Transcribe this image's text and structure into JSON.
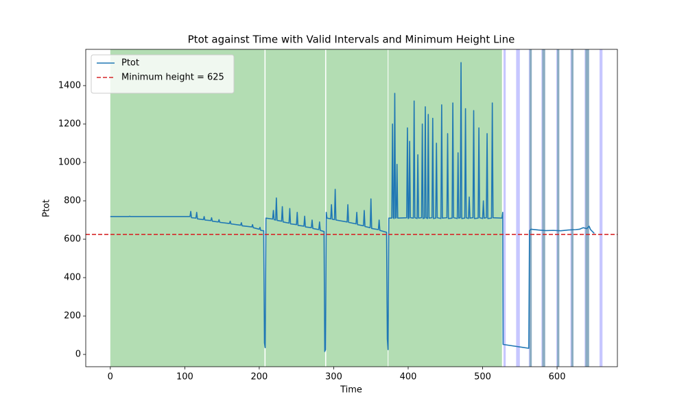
{
  "chart_data": {
    "type": "line",
    "title": "Ptot against Time with Valid Intervals and Minimum Height Line",
    "x_label": "Time",
    "y_label": "Ptot",
    "xlim": [
      -33,
      681
    ],
    "ylim": [
      -64,
      1589
    ],
    "xticks": [
      0,
      100,
      200,
      300,
      400,
      500,
      600
    ],
    "yticks": [
      0,
      200,
      400,
      600,
      800,
      1000,
      1200,
      1400
    ],
    "legend": "upper left",
    "spans": [
      {
        "color": "#2ca02c",
        "alpha": 0.36,
        "intervals": [
          [
            0,
            207
          ],
          [
            208.5,
            288.5
          ],
          [
            290,
            372.5
          ],
          [
            373.5,
            526
          ],
          [
            563,
            566
          ],
          [
            580,
            584
          ],
          [
            600,
            603
          ],
          [
            619,
            622
          ],
          [
            638,
            643
          ]
        ]
      },
      {
        "color": "#0000ff",
        "alpha": 0.22,
        "intervals": [
          [
            528,
            531
          ],
          [
            545,
            550
          ],
          [
            562,
            566
          ],
          [
            579,
            584
          ],
          [
            599,
            603
          ],
          [
            618,
            622
          ],
          [
            637,
            643
          ],
          [
            657,
            661
          ]
        ]
      }
    ],
    "hline": {
      "value": 625,
      "label": "Minimum height = 625",
      "color": "#d62728"
    },
    "series": [
      {
        "name": "Ptot",
        "color": "#1f77b4",
        "x": [
          0,
          25,
          26,
          27,
          107,
          108,
          109,
          115,
          116,
          117,
          125,
          126,
          127,
          135,
          136,
          137,
          145,
          146,
          147,
          160,
          161,
          162,
          175,
          176,
          177,
          190,
          191,
          192,
          200,
          201,
          202,
          206,
          207,
          208,
          209,
          218,
          219,
          220,
          222,
          223,
          224,
          230,
          231,
          232,
          240,
          241,
          242,
          250,
          251,
          252,
          260,
          261,
          262,
          270,
          271,
          272,
          280,
          281,
          282,
          287,
          288,
          289,
          290,
          291,
          296,
          297,
          298,
          301,
          302,
          303,
          318,
          319,
          320,
          330,
          331,
          332,
          340,
          341,
          342,
          349,
          350,
          351,
          360,
          361,
          362,
          371,
          372,
          373,
          374,
          378,
          379,
          380,
          381,
          382,
          383,
          384,
          385,
          386,
          398,
          399,
          400,
          401,
          402,
          403,
          407,
          408,
          409,
          412,
          413,
          414,
          418,
          419,
          420,
          422,
          423,
          424,
          426,
          427,
          428,
          432,
          433,
          434,
          437,
          438,
          439,
          444,
          445,
          446,
          452,
          453,
          454,
          459,
          460,
          461,
          466,
          467,
          468,
          470,
          471,
          472,
          476,
          477,
          478,
          481,
          482,
          483,
          487,
          488,
          489,
          494,
          495,
          496,
          500,
          501,
          502,
          505,
          506,
          507,
          512,
          513,
          514,
          526,
          527,
          527.5,
          562,
          563,
          565,
          575,
          585,
          595,
          605,
          615,
          625,
          630,
          635,
          640,
          643,
          645,
          650
        ],
        "values": [
          718,
          718,
          720,
          718,
          718,
          745,
          712,
          710,
          740,
          706,
          702,
          718,
          700,
          697,
          712,
          694,
          690,
          702,
          688,
          682,
          694,
          680,
          673,
          686,
          670,
          664,
          676,
          660,
          652,
          662,
          646,
          644,
          60,
          35,
          710,
          705,
          750,
          702,
          700,
          815,
          698,
          694,
          770,
          690,
          684,
          760,
          680,
          676,
          740,
          672,
          668,
          720,
          664,
          660,
          700,
          656,
          650,
          690,
          646,
          640,
          15,
          25,
          740,
          710,
          706,
          780,
          704,
          702,
          860,
          700,
          690,
          780,
          688,
          680,
          740,
          676,
          670,
          750,
          666,
          660,
          810,
          656,
          650,
          700,
          646,
          636,
          80,
          25,
          710,
          710,
          1200,
          712,
          708,
          1360,
          710,
          712,
          990,
          710,
          712,
          1180,
          708,
          710,
          1110,
          712,
          710,
          1320,
          712,
          708,
          1040,
          710,
          712,
          1200,
          708,
          710,
          1290,
          712,
          708,
          1250,
          710,
          712,
          1230,
          708,
          710,
          1100,
          712,
          708,
          1300,
          710,
          712,
          1150,
          708,
          710,
          1310,
          712,
          708,
          1050,
          710,
          712,
          1520,
          708,
          710,
          1280,
          712,
          708,
          820,
          710,
          712,
          1270,
          708,
          710,
          1180,
          712,
          708,
          800,
          710,
          712,
          1150,
          708,
          710,
          1310,
          712,
          710,
          740,
          52,
          32,
          645,
          652,
          648,
          645,
          646,
          644,
          648,
          650,
          652,
          660,
          655,
          668,
          650,
          630
        ]
      }
    ]
  }
}
